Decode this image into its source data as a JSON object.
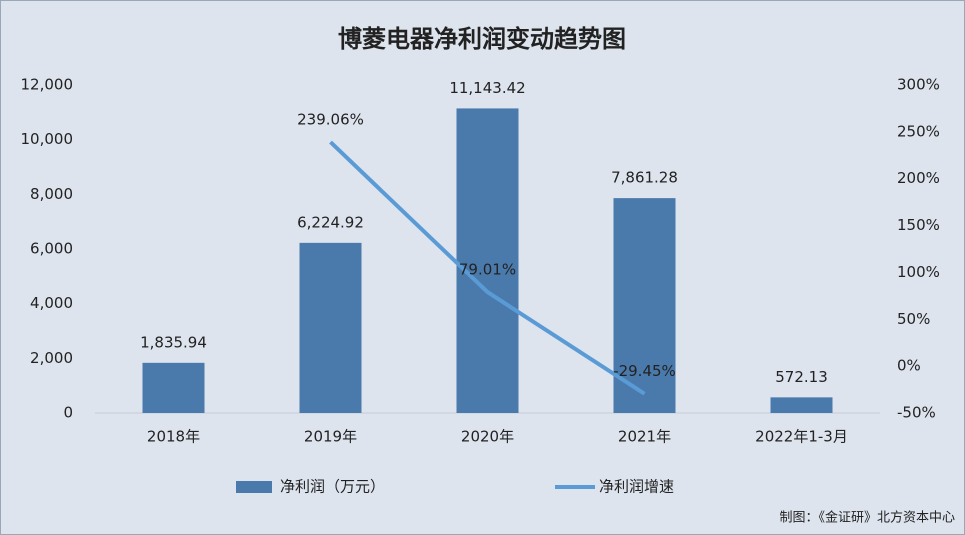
{
  "chart_data": {
    "type": "combo",
    "title": "博菱电器净利润变动趋势图",
    "categories": [
      "2018年",
      "2019年",
      "2020年",
      "2021年",
      "2022年1-3月"
    ],
    "series": [
      {
        "name": "净利润（万元）",
        "type": "bar",
        "color": "#4a7aac",
        "values": [
          1835.94,
          6224.92,
          11143.42,
          7861.28,
          572.13
        ],
        "value_labels": [
          "1,835.94",
          "6,224.92",
          "11,143.42",
          "7,861.28",
          "572.13"
        ]
      },
      {
        "name": "净利润增速",
        "type": "line",
        "axis": "y2",
        "color": "#5b9bd5",
        "values": [
          null,
          239.06,
          79.01,
          -29.45,
          null
        ],
        "value_labels": [
          null,
          "239.06%",
          "79.01%",
          "-29.45%",
          null
        ]
      }
    ],
    "ylim": [
      0,
      12000
    ],
    "yticks": [
      0,
      {
        "value": 2000,
        "label": "2,000"
      },
      {
        "value": 4000,
        "label": "4,000"
      },
      {
        "value": 6000,
        "label": "6,000"
      },
      {
        "value": 8000,
        "label": "8,000"
      },
      {
        "value": 10000,
        "label": "10,000"
      },
      {
        "value": 12000,
        "label": "12,000"
      }
    ],
    "y2lim": [
      -50,
      300
    ],
    "y2ticks": [
      {
        "value": -50,
        "label": "-50%"
      },
      {
        "value": 0,
        "label": "0%"
      },
      {
        "value": 50,
        "label": "50%"
      },
      {
        "value": 100,
        "label": "100%"
      },
      {
        "value": 150,
        "label": "150%"
      },
      {
        "value": 200,
        "label": "200%"
      },
      {
        "value": 250,
        "label": "250%"
      },
      {
        "value": 300,
        "label": "300%"
      }
    ],
    "source": "制图：《金证研》北方资本中心"
  }
}
